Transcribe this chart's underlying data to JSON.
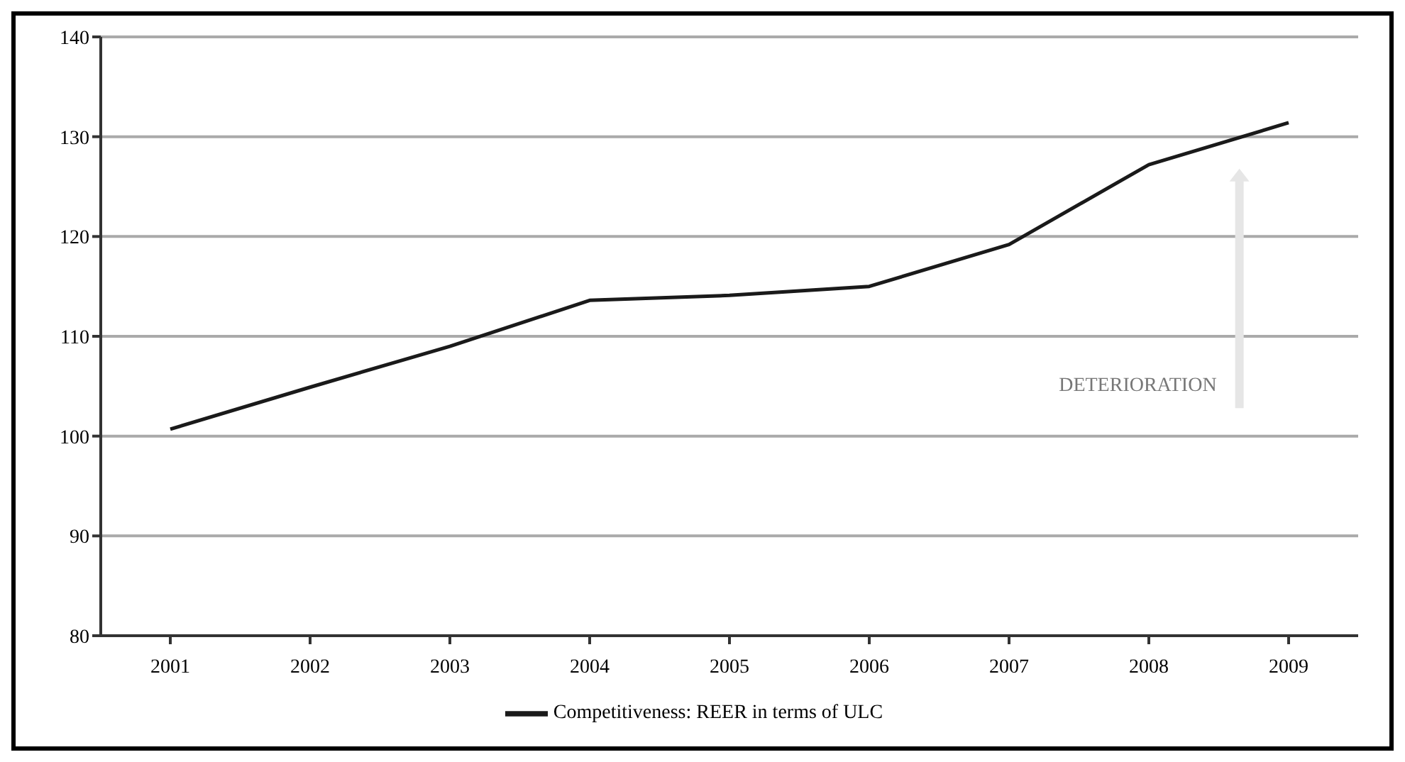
{
  "chart_data": {
    "type": "line",
    "categories": [
      "2001",
      "2002",
      "2003",
      "2004",
      "2005",
      "2006",
      "2007",
      "2008",
      "2009"
    ],
    "series": [
      {
        "name": "Competitiveness: REER in terms of ULC",
        "color": "#1a1a1a",
        "values": [
          100.7,
          104.9,
          109,
          113.6,
          114.1,
          115,
          119.2,
          127.2,
          131.4
        ]
      }
    ],
    "ylim": [
      80,
      140
    ],
    "yticks": [
      80,
      90,
      100,
      110,
      120,
      130,
      140
    ],
    "grid": "y",
    "legend": "bottom",
    "marker": "none",
    "line_style": "solid",
    "annotations": [
      "DETERIORATION"
    ]
  }
}
